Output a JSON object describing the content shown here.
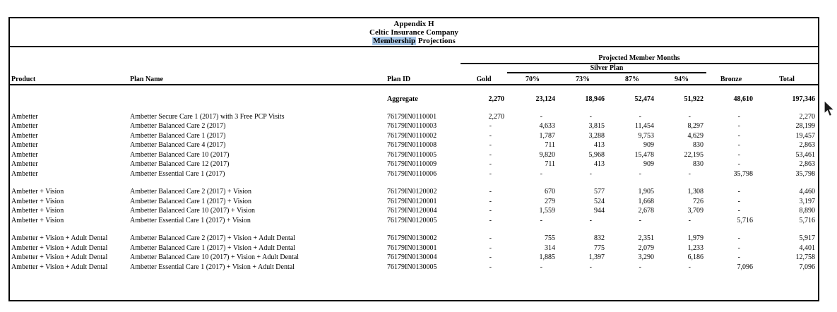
{
  "page": {
    "title_line1": "Appendix H",
    "title_line2": "Celtic Insurance Company",
    "title_line3_highlighted": "Membership",
    "title_line3_rest": " Projections",
    "highlight_color": "#a9c8e8"
  },
  "table": {
    "group_header": "Projected Member Months",
    "silver_header": "Silver Plan",
    "columns": [
      "Product",
      "Plan Name",
      "Plan ID",
      "Gold",
      "70%",
      "73%",
      "87%",
      "94%",
      "Bronze",
      "Total"
    ],
    "aggregate": {
      "label": "Aggregate",
      "gold": "2,270",
      "p70": "23,124",
      "p73": "18,946",
      "p87": "52,474",
      "p94": "51,922",
      "bronze": "48,610",
      "total": "197,346"
    },
    "groups": [
      {
        "rows": [
          {
            "product": "Ambetter",
            "plan_name": "Ambetter Secure Care 1 (2017) with 3 Free PCP Visits",
            "plan_id": "76179IN0110001",
            "gold": "2,270",
            "p70": "-",
            "p73": "-",
            "p87": "-",
            "p94": "-",
            "bronze": "-",
            "total": "2,270"
          },
          {
            "product": "Ambetter",
            "plan_name": "Ambetter Balanced Care 2 (2017)",
            "plan_id": "76179IN0110003",
            "gold": "-",
            "p70": "4,633",
            "p73": "3,815",
            "p87": "11,454",
            "p94": "8,297",
            "bronze": "-",
            "total": "28,199"
          },
          {
            "product": "Ambetter",
            "plan_name": "Ambetter Balanced Care 1 (2017)",
            "plan_id": "76179IN0110002",
            "gold": "-",
            "p70": "1,787",
            "p73": "3,288",
            "p87": "9,753",
            "p94": "4,629",
            "bronze": "-",
            "total": "19,457"
          },
          {
            "product": "Ambetter",
            "plan_name": "Ambetter Balanced Care 4 (2017)",
            "plan_id": "76179IN0110008",
            "gold": "-",
            "p70": "711",
            "p73": "413",
            "p87": "909",
            "p94": "830",
            "bronze": "-",
            "total": "2,863"
          },
          {
            "product": "Ambetter",
            "plan_name": "Ambetter Balanced Care 10 (2017)",
            "plan_id": "76179IN0110005",
            "gold": "-",
            "p70": "9,820",
            "p73": "5,968",
            "p87": "15,478",
            "p94": "22,195",
            "bronze": "-",
            "total": "53,461"
          },
          {
            "product": "Ambetter",
            "plan_name": "Ambetter Balanced Care 12 (2017)",
            "plan_id": "76179IN0110009",
            "gold": "-",
            "p70": "711",
            "p73": "413",
            "p87": "909",
            "p94": "830",
            "bronze": "-",
            "total": "2,863"
          },
          {
            "product": "Ambetter",
            "plan_name": "Ambetter Essential Care 1 (2017)",
            "plan_id": "76179IN0110006",
            "gold": "-",
            "p70": "-",
            "p73": "-",
            "p87": "-",
            "p94": "-",
            "bronze": "35,798",
            "total": "35,798"
          }
        ]
      },
      {
        "rows": [
          {
            "product": "Ambetter + Vision",
            "plan_name": "Ambetter Balanced Care 2 (2017) + Vision",
            "plan_id": "76179IN0120002",
            "gold": "-",
            "p70": "670",
            "p73": "577",
            "p87": "1,905",
            "p94": "1,308",
            "bronze": "-",
            "total": "4,460"
          },
          {
            "product": "Ambetter + Vision",
            "plan_name": "Ambetter Balanced Care 1 (2017) + Vision",
            "plan_id": "76179IN0120001",
            "gold": "-",
            "p70": "279",
            "p73": "524",
            "p87": "1,668",
            "p94": "726",
            "bronze": "-",
            "total": "3,197"
          },
          {
            "product": "Ambetter + Vision",
            "plan_name": "Ambetter Balanced Care 10 (2017) + Vision",
            "plan_id": "76179IN0120004",
            "gold": "-",
            "p70": "1,559",
            "p73": "944",
            "p87": "2,678",
            "p94": "3,709",
            "bronze": "-",
            "total": "8,890"
          },
          {
            "product": "Ambetter + Vision",
            "plan_name": "Ambetter Essential Care 1 (2017) + Vision",
            "plan_id": "76179IN0120005",
            "gold": "-",
            "p70": "-",
            "p73": "-",
            "p87": "-",
            "p94": "-",
            "bronze": "5,716",
            "total": "5,716"
          }
        ]
      },
      {
        "rows": [
          {
            "product": "Ambetter + Vision + Adult Dental",
            "plan_name": "Ambetter Balanced Care 2 (2017) + Vision + Adult Dental",
            "plan_id": "76179IN0130002",
            "gold": "-",
            "p70": "755",
            "p73": "832",
            "p87": "2,351",
            "p94": "1,979",
            "bronze": "-",
            "total": "5,917"
          },
          {
            "product": "Ambetter + Vision + Adult Dental",
            "plan_name": "Ambetter Balanced Care 1 (2017) + Vision + Adult Dental",
            "plan_id": "76179IN0130001",
            "gold": "-",
            "p70": "314",
            "p73": "775",
            "p87": "2,079",
            "p94": "1,233",
            "bronze": "-",
            "total": "4,401"
          },
          {
            "product": "Ambetter + Vision + Adult Dental",
            "plan_name": "Ambetter Balanced Care 10 (2017) + Vision + Adult Dental",
            "plan_id": "76179IN0130004",
            "gold": "-",
            "p70": "1,885",
            "p73": "1,397",
            "p87": "3,290",
            "p94": "6,186",
            "bronze": "-",
            "total": "12,758"
          },
          {
            "product": "Ambetter + Vision + Adult Dental",
            "plan_name": "Ambetter Essential Care 1 (2017) + Vision + Adult Dental",
            "plan_id": "76179IN0130005",
            "gold": "-",
            "p70": "-",
            "p73": "-",
            "p87": "-",
            "p94": "-",
            "bronze": "7,096",
            "total": "7,096"
          }
        ]
      }
    ]
  },
  "cursor": {
    "icon": "arrow-pointer"
  }
}
